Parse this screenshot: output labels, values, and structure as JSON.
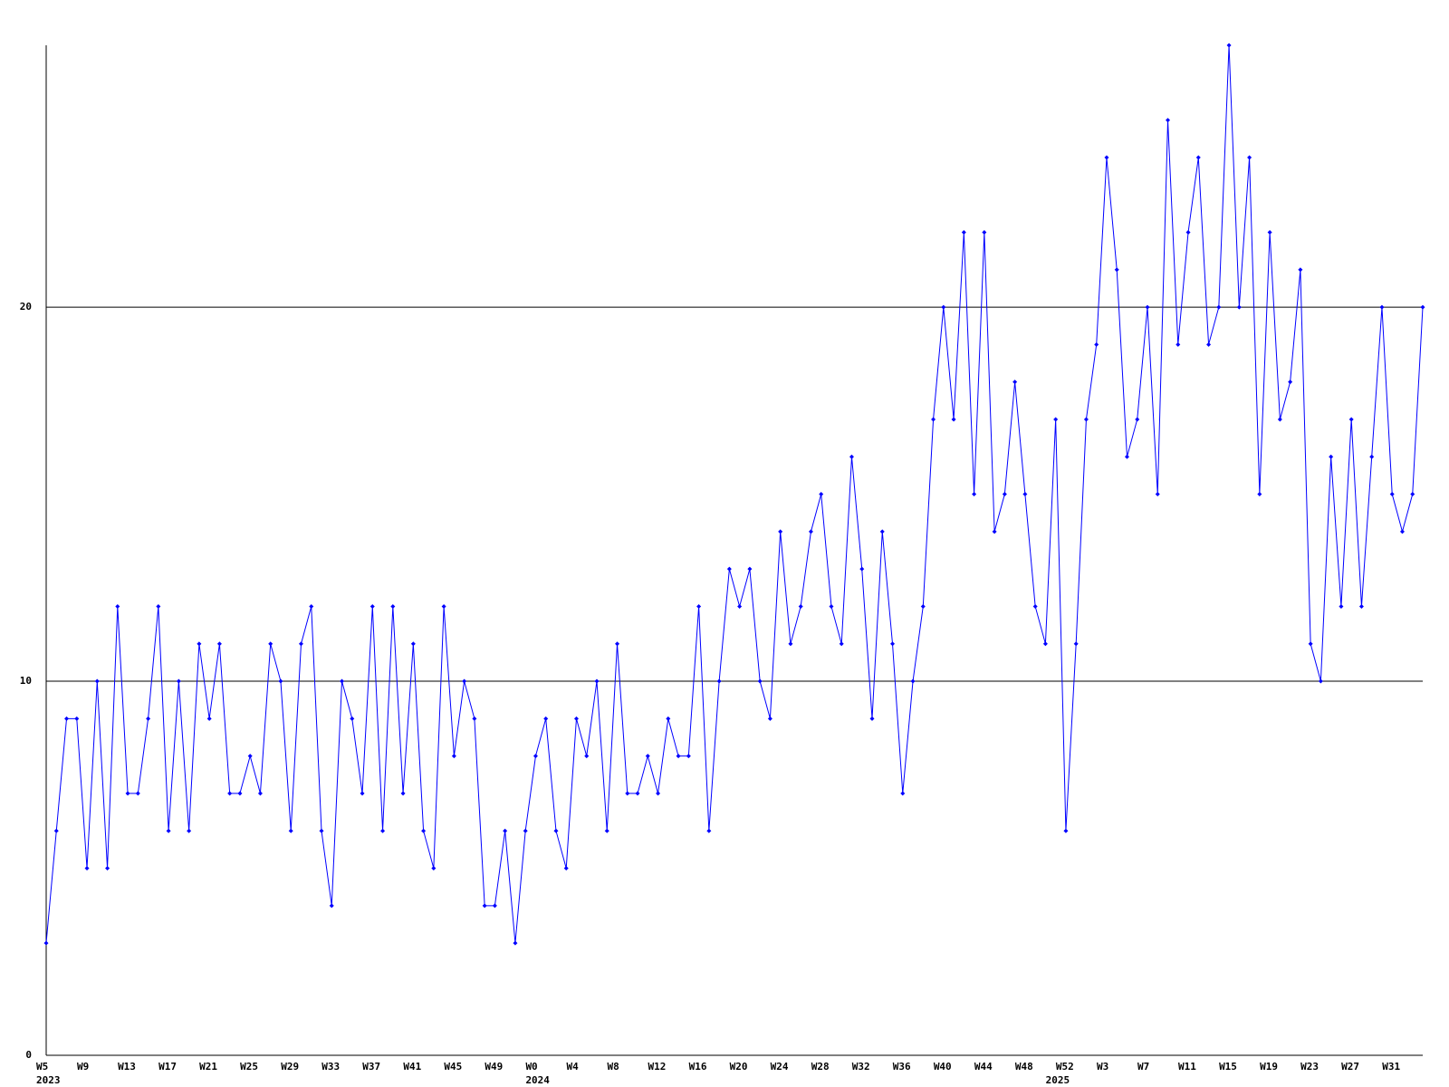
{
  "chart_data": {
    "type": "line",
    "categories": [
      "W5",
      null,
      null,
      null,
      "W9",
      null,
      null,
      null,
      "W13",
      null,
      null,
      null,
      "W17",
      null,
      null,
      null,
      "W21",
      null,
      null,
      null,
      "W25",
      null,
      null,
      null,
      "W29",
      null,
      null,
      null,
      "W33",
      null,
      null,
      null,
      "W37",
      null,
      null,
      null,
      "W41",
      null,
      null,
      null,
      "W45",
      null,
      null,
      null,
      "W49",
      null,
      null,
      null,
      "W0",
      null,
      null,
      null,
      "W4",
      null,
      null,
      null,
      "W8",
      null,
      null,
      null,
      "W12",
      null,
      null,
      null,
      "W16",
      null,
      null,
      null,
      "W20",
      null,
      null,
      null,
      "W24",
      null,
      null,
      null,
      "W28",
      null,
      null,
      null,
      "W32",
      null,
      null,
      null,
      "W36",
      null,
      null,
      null,
      "W40",
      null,
      null,
      null,
      "W44",
      null,
      null,
      null,
      "W48",
      null,
      null,
      null,
      "W52",
      null,
      null,
      null,
      "W3",
      null,
      null,
      null,
      "W7",
      null,
      null,
      null,
      "W11",
      null,
      null,
      null,
      "W15",
      null,
      null,
      null,
      "W19",
      null,
      null,
      null,
      "W23",
      null,
      null,
      null,
      "W27",
      null,
      null,
      null,
      "W31",
      null,
      null,
      null
    ],
    "years": [
      "2023",
      null,
      null,
      null,
      null,
      null,
      null,
      null,
      null,
      null,
      null,
      null,
      null,
      null,
      null,
      null,
      null,
      null,
      null,
      null,
      null,
      null,
      null,
      null,
      null,
      null,
      null,
      null,
      null,
      null,
      null,
      null,
      null,
      null,
      null,
      null,
      null,
      null,
      null,
      null,
      null,
      null,
      null,
      null,
      null,
      null,
      null,
      null,
      "2024",
      null,
      null,
      null,
      null,
      null,
      null,
      null,
      null,
      null,
      null,
      null,
      null,
      null,
      null,
      null,
      null,
      null,
      null,
      null,
      null,
      null,
      null,
      null,
      null,
      null,
      null,
      null,
      null,
      null,
      null,
      null,
      null,
      null,
      null,
      null,
      null,
      null,
      null,
      null,
      null,
      null,
      null,
      null,
      null,
      null,
      null,
      null,
      null,
      null,
      null,
      "2025",
      null,
      null,
      null,
      null,
      null,
      null,
      null,
      null,
      null,
      null,
      null,
      null,
      null,
      null,
      null,
      null,
      null,
      null,
      null,
      null,
      null,
      null,
      null,
      null,
      null,
      null,
      null,
      null,
      null,
      null,
      null,
      null,
      null
    ],
    "values": [
      3,
      6,
      9,
      9,
      5,
      10,
      5,
      12,
      7,
      7,
      9,
      12,
      6,
      10,
      6,
      11,
      9,
      11,
      7,
      7,
      8,
      7,
      11,
      10,
      6,
      11,
      12,
      6,
      4,
      10,
      9,
      7,
      12,
      6,
      12,
      7,
      11,
      6,
      5,
      12,
      8,
      10,
      9,
      4,
      4,
      6,
      3,
      6,
      8,
      9,
      6,
      5,
      9,
      8,
      10,
      6,
      11,
      7,
      7,
      8,
      7,
      9,
      8,
      8,
      12,
      6,
      10,
      13,
      12,
      13,
      10,
      9,
      14,
      11,
      12,
      14,
      15,
      12,
      11,
      16,
      13,
      9,
      14,
      11,
      7,
      10,
      12,
      17,
      20,
      17,
      22,
      15,
      22,
      14,
      15,
      18,
      15,
      12,
      11,
      17,
      6,
      11,
      17,
      19,
      24,
      21,
      16,
      17,
      20,
      15,
      25,
      19,
      22,
      24,
      19,
      20,
      27,
      20,
      24,
      15,
      22,
      17,
      18,
      21,
      11,
      10,
      16,
      12,
      17,
      12,
      16,
      20,
      15,
      14,
      15,
      20
    ],
    "color": "#0000ff",
    "ylim": [
      0,
      27
    ],
    "yticks": [
      0,
      10,
      20
    ],
    "grid": true
  }
}
